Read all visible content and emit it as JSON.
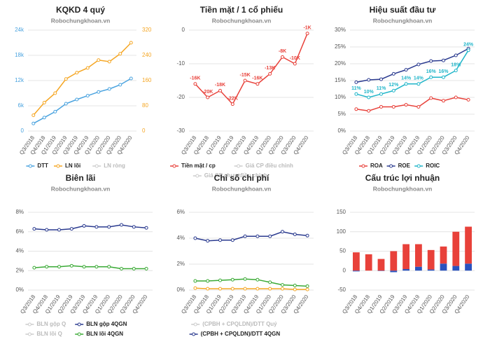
{
  "chart_data": [
    {
      "type": "line",
      "title": "KQKD 4 quý",
      "subtitle": "Robochungkhoan.vn",
      "categories": [
        "Q3/2018",
        "Q4/2018",
        "Q1/2019",
        "Q2/2019",
        "Q3/2019",
        "Q4/2019",
        "Q1/2020",
        "Q2/2020",
        "Q3/2020",
        "Q4/2020"
      ],
      "ylim": [
        0,
        24000
      ],
      "yticks": [
        0,
        {
          "value": 6000,
          "label": "6k"
        },
        {
          "value": 12000,
          "label": "12k"
        },
        {
          "value": 18000,
          "label": "18k"
        },
        {
          "value": 24000,
          "label": "24k"
        }
      ],
      "y2lim": [
        0,
        320
      ],
      "y2ticks": [
        0,
        80,
        160,
        240,
        320
      ],
      "grid": true,
      "series": [
        {
          "name": "DTT",
          "color": "#4aa3df",
          "values": [
            1800,
            3200,
            4600,
            6500,
            7500,
            8400,
            9300,
            10000,
            11000,
            12500
          ]
        },
        {
          "name": "LN lõi",
          "color": "#f5a623",
          "axis": "y2",
          "values": [
            50,
            90,
            120,
            165,
            185,
            200,
            225,
            220,
            245,
            280
          ]
        },
        {
          "name": "LN ròng",
          "color": "#cccccc",
          "hidden": true,
          "values": [
            null,
            null,
            null,
            null,
            null,
            null,
            null,
            null,
            null,
            null
          ]
        }
      ]
    },
    {
      "type": "line",
      "title": "Tiền mặt / 1 cổ phiếu",
      "subtitle": "Robochungkhoan.vn",
      "categories": [
        "Q3/2018",
        "Q4/2018",
        "Q1/2019",
        "Q2/2019",
        "Q3/2019",
        "Q4/2019",
        "Q1/2020",
        "Q2/2020",
        "Q3/2020",
        "Q4/2020"
      ],
      "ylim": [
        -30,
        0
      ],
      "yticks": [
        -30,
        -20,
        -10,
        0
      ],
      "grid": true,
      "series": [
        {
          "name": "Tiền mặt / cp",
          "color": "#e8413a",
          "values": [
            -16,
            -20,
            -18,
            -22,
            -15,
            -16,
            -13,
            -8,
            -10,
            -1
          ],
          "value_labels": [
            "-16K",
            "-20K",
            "-18K",
            "-22K",
            "-15K",
            "-16K",
            "-13K",
            "-8K",
            "-10K",
            "-1K"
          ]
        },
        {
          "name": "Giá CP điều chỉnh",
          "color": "#cccccc",
          "hidden": true,
          "values": [
            null,
            null,
            null,
            null,
            null,
            null,
            null,
            null,
            null,
            null
          ]
        },
        {
          "name": "Giá CP chưa điều chỉnh",
          "color": "#cccccc",
          "hidden": true,
          "values": [
            null,
            null,
            null,
            null,
            null,
            null,
            null,
            null,
            null,
            null
          ]
        }
      ]
    },
    {
      "type": "line",
      "title": "Hiệu suất đầu tư",
      "subtitle": "Robochungkhoan.vn",
      "categories": [
        "Q3/2018",
        "Q4/2018",
        "Q1/2019",
        "Q2/2019",
        "Q3/2019",
        "Q4/2019",
        "Q1/2020",
        "Q2/2020",
        "Q3/2020",
        "Q4/2020"
      ],
      "ylim": [
        0,
        30
      ],
      "yticks": [
        {
          "value": 0,
          "label": "0%"
        },
        {
          "value": 5,
          "label": "5%"
        },
        {
          "value": 10,
          "label": "10%"
        },
        {
          "value": 15,
          "label": "15%"
        },
        {
          "value": 20,
          "label": "20%"
        },
        {
          "value": 25,
          "label": "25%"
        },
        {
          "value": 30,
          "label": "30%"
        }
      ],
      "grid": true,
      "series": [
        {
          "name": "ROA",
          "color": "#e8413a",
          "values": [
            6.5,
            6,
            7.2,
            7.2,
            7.8,
            7.2,
            9.8,
            9,
            10,
            9.3
          ]
        },
        {
          "name": "ROE",
          "color": "#2a3a8f",
          "values": [
            14.5,
            15.2,
            15.4,
            17,
            18.2,
            19.8,
            20.8,
            21,
            22.5,
            24.5
          ]
        },
        {
          "name": "ROIC",
          "color": "#1fb5c9",
          "values": [
            11,
            10,
            11,
            12,
            14,
            14,
            16,
            16,
            18,
            24
          ],
          "value_labels": [
            "11%",
            "10%",
            "11%",
            "12%",
            "14%",
            "14%",
            "16%",
            "16%",
            "18%",
            "24%"
          ]
        }
      ]
    },
    {
      "type": "line",
      "title": "Biên lãi",
      "subtitle": "Robochungkhoan.vn",
      "categories": [
        "Q3/2018",
        "Q4/2018",
        "Q1/2019",
        "Q2/2019",
        "Q3/2019",
        "Q4/2019",
        "Q1/2020",
        "Q2/2020",
        "Q3/2020",
        "Q4/2020"
      ],
      "ylim": [
        0,
        8
      ],
      "yticks": [
        {
          "value": 0,
          "label": "0%"
        },
        {
          "value": 2,
          "label": "2%"
        },
        {
          "value": 4,
          "label": "4%"
        },
        {
          "value": 6,
          "label": "6%"
        },
        {
          "value": 8,
          "label": "8%"
        }
      ],
      "grid": true,
      "series": [
        {
          "name": "BLN gộp Q",
          "color": "#cccccc",
          "hidden": true,
          "values": [
            null,
            null,
            null,
            null,
            null,
            null,
            null,
            null,
            null,
            null
          ]
        },
        {
          "name": "BLN gộp 4QGN",
          "color": "#2a3a8f",
          "values": [
            6.3,
            6.2,
            6.2,
            6.3,
            6.6,
            6.5,
            6.5,
            6.7,
            6.5,
            6.4
          ]
        },
        {
          "name": "BLN lõi Q",
          "color": "#cccccc",
          "hidden": true,
          "values": [
            null,
            null,
            null,
            null,
            null,
            null,
            null,
            null,
            null,
            null
          ]
        },
        {
          "name": "BLN lõi 4QGN",
          "color": "#3aaa35",
          "values": [
            2.3,
            2.4,
            2.4,
            2.5,
            2.4,
            2.4,
            2.4,
            2.2,
            2.2,
            2.2
          ]
        }
      ]
    },
    {
      "type": "line",
      "title": "Chỉ số chi phí",
      "subtitle": "Robochungkhoan.vn",
      "categories": [
        "Q3/2018",
        "Q4/2018",
        "Q1/2019",
        "Q2/2019",
        "Q3/2019",
        "Q4/2019",
        "Q1/2020",
        "Q2/2020",
        "Q3/2020",
        "Q4/2020"
      ],
      "ylim": [
        0,
        6
      ],
      "yticks": [
        {
          "value": 0,
          "label": "0%"
        },
        {
          "value": 2,
          "label": "2%"
        },
        {
          "value": 4,
          "label": "4%"
        },
        {
          "value": 6,
          "label": "6%"
        }
      ],
      "grid": true,
      "series": [
        {
          "name": "(CPBH + CPQLDN)/DTT Quý",
          "color": "#cccccc",
          "hidden": true,
          "values": [
            null,
            null,
            null,
            null,
            null,
            null,
            null,
            null,
            null,
            null
          ]
        },
        {
          "name": "(CPBH + CPQLDN)/DTT 4QGN",
          "color": "#2a3a8f",
          "values": [
            4.0,
            3.8,
            3.85,
            3.85,
            4.15,
            4.15,
            4.15,
            4.5,
            4.3,
            4.2
          ]
        },
        {
          "color": "#3aaa35",
          "values": [
            0.7,
            0.7,
            0.75,
            0.8,
            0.85,
            0.8,
            0.6,
            0.4,
            0.35,
            0.3
          ]
        },
        {
          "color": "#f5a623",
          "values": [
            0.15,
            0.1,
            0.1,
            0.1,
            0.1,
            0.1,
            0.1,
            0.1,
            0.05,
            0.05
          ]
        }
      ]
    },
    {
      "type": "bar",
      "title": "Cấu trúc lợi nhuận",
      "subtitle": "Robochungkhoan.vn",
      "stacked": true,
      "categories": [
        "Q3/2018",
        "Q4/2018",
        "Q1/2019",
        "Q2/2019",
        "Q3/2019",
        "Q4/2019",
        "Q1/2020",
        "Q2/2020",
        "Q3/2020",
        "Q4/2020"
      ],
      "ylim": [
        -50,
        150
      ],
      "yticks": [
        -50,
        0,
        50,
        100,
        150
      ],
      "grid": true,
      "series": [
        {
          "color": "#2a52be",
          "values": [
            -2,
            0,
            -1,
            -4,
            4,
            10,
            3,
            18,
            12,
            18
          ]
        },
        {
          "color": "#e8413a",
          "values": [
            47,
            42,
            30,
            50,
            64,
            58,
            50,
            44,
            88,
            95
          ]
        }
      ]
    }
  ]
}
